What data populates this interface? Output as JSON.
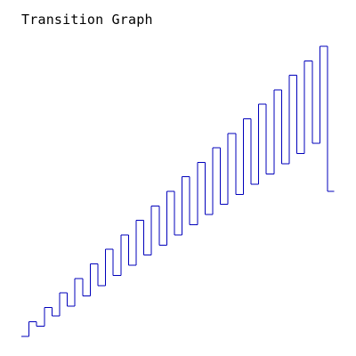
{
  "title": "Transition Graph",
  "colors": {
    "line": "#0000bb",
    "background": "#ffffff",
    "title": "#000000"
  },
  "chart_data": {
    "type": "line",
    "step": true,
    "title": "Transition Graph",
    "xlabel": "",
    "ylabel": "",
    "axes_visible": false,
    "grid": false,
    "legend": "none",
    "series": [
      {
        "values": [
          [
            0,
            0
          ],
          [
            1,
            1
          ],
          [
            2,
            0.7
          ],
          [
            3,
            2
          ],
          [
            4,
            1.4
          ],
          [
            5,
            3
          ],
          [
            6,
            2.1
          ],
          [
            7,
            4
          ],
          [
            8,
            2.8
          ],
          [
            9,
            5
          ],
          [
            10,
            3.5
          ],
          [
            11,
            6
          ],
          [
            12,
            4.2
          ],
          [
            13,
            7
          ],
          [
            14,
            4.9
          ],
          [
            15,
            8
          ],
          [
            16,
            5.6
          ],
          [
            17,
            9
          ],
          [
            18,
            6.3
          ],
          [
            19,
            10
          ],
          [
            20,
            7
          ],
          [
            21,
            11
          ],
          [
            22,
            7.7
          ],
          [
            23,
            12
          ],
          [
            24,
            8.4
          ],
          [
            25,
            13
          ],
          [
            26,
            9.1
          ],
          [
            27,
            14
          ],
          [
            28,
            9.8
          ],
          [
            29,
            15
          ],
          [
            30,
            10.5
          ],
          [
            31,
            16
          ],
          [
            32,
            11.2
          ],
          [
            33,
            17
          ],
          [
            34,
            11.9
          ],
          [
            35,
            18
          ],
          [
            36,
            12.6
          ],
          [
            37,
            19
          ],
          [
            38,
            13.3
          ],
          [
            39,
            20
          ],
          [
            40,
            10
          ]
        ]
      }
    ]
  }
}
